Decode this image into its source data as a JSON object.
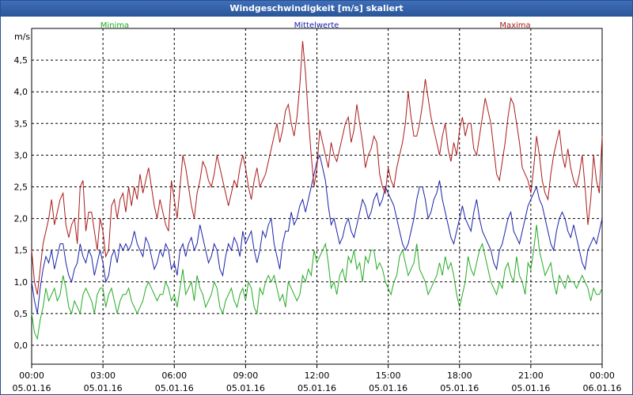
{
  "window": {
    "title": "Windgeschwindigkeit [m/s] skaliert"
  },
  "colors": {
    "min": "#22aa22",
    "mean": "#1a22a8",
    "max": "#aa1a1a",
    "grid": "#000000"
  },
  "chart_data": {
    "type": "line",
    "title": "Windgeschwindigkeit [m/s] skaliert",
    "ylabel": "m/s",
    "ylim": [
      -0.3,
      5.0
    ],
    "yticks": [
      0,
      0.5,
      1,
      1.5,
      2,
      2.5,
      3,
      3.5,
      4,
      4.5
    ],
    "ytick_labels": [
      "0,0",
      "0,5",
      "1,0",
      "1,5",
      "2,0",
      "2,5",
      "3,0",
      "3,5",
      "4,0",
      "4,5"
    ],
    "xlim": [
      0,
      24
    ],
    "xticks": [
      {
        "x": 0,
        "time": "00:00",
        "date": "05.01.16"
      },
      {
        "x": 3,
        "time": "03:00",
        "date": "05.01.16"
      },
      {
        "x": 6,
        "time": "06:00",
        "date": "05.01.16"
      },
      {
        "x": 9,
        "time": "09:00",
        "date": "05.01.16"
      },
      {
        "x": 12,
        "time": "12:00",
        "date": "05.01.16"
      },
      {
        "x": 15,
        "time": "15:00",
        "date": "05.01.16"
      },
      {
        "x": 18,
        "time": "18:00",
        "date": "05.01.16"
      },
      {
        "x": 21,
        "time": "21:00",
        "date": "05.01.16"
      },
      {
        "x": 24,
        "time": "00:00",
        "date": "06.01.16"
      }
    ],
    "grid": true,
    "series": [
      {
        "name": "Minima",
        "color": "#22aa22",
        "values": [
          0.5,
          0.2,
          0.1,
          0.4,
          0.6,
          0.9,
          0.7,
          0.8,
          0.9,
          0.7,
          0.8,
          1.1,
          0.9,
          0.6,
          0.5,
          0.7,
          0.6,
          0.5,
          0.8,
          0.9,
          0.8,
          0.7,
          0.5,
          0.8,
          0.9,
          0.9,
          0.6,
          0.8,
          0.9,
          0.7,
          0.5,
          0.7,
          0.8,
          0.8,
          0.9,
          0.7,
          0.6,
          0.5,
          0.6,
          0.7,
          0.9,
          1.0,
          0.9,
          0.8,
          0.7,
          0.8,
          0.8,
          1.0,
          0.9,
          0.7,
          0.8,
          0.6,
          0.9,
          1.2,
          0.8,
          0.9,
          1.0,
          0.7,
          1.1,
          0.9,
          0.8,
          0.6,
          0.7,
          0.8,
          1.0,
          0.9,
          0.6,
          0.5,
          0.7,
          0.8,
          0.9,
          0.7,
          0.6,
          0.8,
          0.9,
          0.7,
          1.0,
          0.9,
          0.6,
          0.5,
          0.9,
          0.8,
          1.0,
          1.1,
          1.0,
          1.1,
          0.9,
          0.7,
          0.8,
          0.6,
          1.0,
          0.9,
          0.8,
          0.7,
          0.8,
          1.1,
          1.0,
          1.2,
          1.1,
          1.5,
          1.3,
          1.4,
          1.5,
          1.6,
          1.3,
          0.9,
          1.0,
          0.8,
          1.1,
          1.2,
          1.0,
          1.4,
          1.3,
          1.5,
          1.2,
          1.3,
          1.0,
          1.4,
          1.3,
          1.5,
          1.5,
          1.2,
          1.3,
          1.2,
          1.0,
          0.9,
          0.8,
          1.0,
          1.1,
          1.4,
          1.5,
          1.3,
          1.1,
          1.2,
          1.3,
          1.6,
          1.2,
          1.1,
          1.0,
          0.8,
          0.9,
          1.0,
          1.1,
          1.3,
          1.1,
          1.4,
          1.2,
          1.3,
          1.1,
          0.8,
          0.6,
          0.8,
          1.0,
          1.4,
          1.2,
          1.1,
          1.3,
          1.5,
          1.6,
          1.4,
          1.2,
          1.0,
          0.9,
          0.8,
          1.0,
          0.9,
          1.2,
          1.3,
          1.1,
          1.0,
          1.4,
          1.1,
          1.0,
          0.8,
          1.3,
          1.2,
          1.5,
          1.9,
          1.5,
          1.3,
          1.1,
          1.2,
          1.3,
          1.0,
          0.8,
          1.1,
          1.0,
          0.9,
          1.1,
          1.0,
          1.0,
          0.9,
          1.0,
          1.1,
          1.0,
          0.9,
          0.7,
          0.9,
          0.8,
          0.8,
          0.9
        ]
      },
      {
        "name": "Mittelwerte",
        "color": "#1a22a8",
        "values": [
          1.0,
          0.7,
          0.5,
          0.9,
          1.2,
          1.4,
          1.3,
          1.5,
          1.2,
          1.4,
          1.6,
          1.6,
          1.3,
          1.1,
          1.0,
          1.2,
          1.3,
          1.6,
          1.4,
          1.3,
          1.5,
          1.4,
          1.1,
          1.3,
          1.5,
          1.3,
          1.0,
          1.1,
          1.4,
          1.5,
          1.3,
          1.6,
          1.5,
          1.6,
          1.5,
          1.6,
          1.8,
          1.6,
          1.5,
          1.4,
          1.7,
          1.6,
          1.4,
          1.2,
          1.3,
          1.5,
          1.4,
          1.6,
          1.5,
          1.2,
          1.3,
          1.1,
          1.5,
          1.6,
          1.4,
          1.6,
          1.7,
          1.5,
          1.6,
          1.9,
          1.7,
          1.5,
          1.3,
          1.4,
          1.6,
          1.5,
          1.2,
          1.1,
          1.4,
          1.6,
          1.5,
          1.7,
          1.6,
          1.4,
          1.8,
          1.6,
          1.7,
          1.8,
          1.5,
          1.3,
          1.5,
          1.8,
          1.7,
          1.9,
          2.0,
          1.6,
          1.4,
          1.2,
          1.6,
          1.8,
          1.8,
          2.1,
          1.9,
          2.0,
          2.2,
          2.3,
          2.1,
          2.3,
          2.5,
          2.7,
          2.9,
          3.0,
          2.8,
          2.6,
          2.2,
          1.9,
          2.0,
          1.8,
          1.6,
          1.7,
          1.9,
          2.0,
          1.8,
          1.7,
          1.9,
          2.1,
          2.3,
          2.2,
          2.0,
          2.1,
          2.3,
          2.4,
          2.2,
          2.3,
          2.5,
          2.4,
          2.3,
          2.2,
          2.0,
          1.8,
          1.6,
          1.5,
          1.6,
          1.8,
          2.0,
          2.3,
          2.5,
          2.5,
          2.3,
          2.0,
          2.1,
          2.3,
          2.4,
          2.6,
          2.3,
          2.1,
          1.9,
          1.7,
          1.6,
          1.8,
          2.0,
          2.2,
          2.0,
          1.9,
          1.8,
          2.1,
          2.3,
          2.0,
          1.8,
          1.7,
          1.6,
          1.5,
          1.3,
          1.2,
          1.5,
          1.6,
          1.8,
          2.0,
          2.1,
          1.8,
          1.7,
          1.6,
          1.8,
          2.0,
          2.2,
          2.3,
          2.4,
          2.5,
          2.3,
          2.2,
          2.0,
          1.8,
          1.6,
          1.5,
          1.8,
          2.0,
          2.1,
          2.0,
          1.8,
          1.7,
          1.9,
          1.7,
          1.5,
          1.3,
          1.2,
          1.5,
          1.6,
          1.7,
          1.6,
          1.8,
          2.0
        ]
      },
      {
        "name": "Maxima",
        "color": "#aa1a1a",
        "values": [
          1.5,
          1.0,
          0.8,
          1.2,
          1.6,
          1.8,
          2.0,
          2.3,
          1.9,
          2.1,
          2.3,
          2.4,
          1.9,
          1.7,
          1.9,
          2.0,
          1.6,
          2.5,
          2.6,
          1.8,
          2.1,
          2.1,
          1.8,
          1.5,
          2.0,
          1.8,
          1.4,
          1.5,
          2.2,
          2.3,
          2.0,
          2.3,
          2.4,
          2.1,
          2.5,
          2.2,
          2.5,
          2.3,
          2.7,
          2.4,
          2.6,
          2.8,
          2.5,
          2.2,
          2.0,
          2.3,
          2.1,
          1.9,
          1.8,
          2.6,
          2.3,
          2.0,
          2.5,
          3.0,
          2.8,
          2.5,
          2.2,
          2.0,
          2.4,
          2.6,
          2.9,
          2.8,
          2.6,
          2.5,
          2.7,
          3.0,
          2.8,
          2.6,
          2.4,
          2.2,
          2.4,
          2.6,
          2.5,
          2.8,
          3.0,
          2.8,
          2.5,
          2.3,
          2.6,
          2.8,
          2.5,
          2.6,
          2.7,
          2.9,
          3.1,
          3.3,
          3.5,
          3.2,
          3.4,
          3.7,
          3.8,
          3.5,
          3.3,
          3.6,
          4.1,
          4.8,
          4.3,
          3.6,
          3.0,
          2.5,
          2.8,
          3.4,
          3.2,
          3.0,
          2.8,
          3.2,
          3.0,
          2.9,
          3.1,
          3.3,
          3.5,
          3.6,
          3.2,
          3.4,
          3.8,
          3.5,
          3.2,
          2.8,
          3.0,
          3.1,
          3.3,
          3.2,
          2.7,
          2.5,
          2.4,
          2.8,
          2.6,
          2.5,
          2.8,
          3.0,
          3.2,
          3.5,
          4.0,
          3.6,
          3.3,
          3.3,
          3.5,
          3.8,
          4.2,
          3.9,
          3.6,
          3.4,
          3.2,
          3.0,
          3.3,
          3.5,
          3.1,
          2.9,
          3.2,
          3.0,
          3.4,
          3.6,
          3.3,
          3.5,
          3.5,
          3.1,
          3.0,
          3.3,
          3.6,
          3.9,
          3.7,
          3.5,
          3.1,
          2.7,
          2.6,
          2.9,
          3.2,
          3.6,
          3.9,
          3.8,
          3.5,
          3.2,
          2.8,
          2.7,
          2.6,
          2.4,
          2.8,
          3.3,
          3.0,
          2.6,
          2.4,
          2.3,
          2.7,
          3.0,
          3.2,
          3.4,
          3.0,
          2.8,
          3.1,
          2.8,
          2.6,
          2.5,
          2.7,
          3.0,
          2.5,
          1.9,
          2.3,
          3.0,
          2.6,
          2.4,
          3.3
        ]
      }
    ]
  }
}
